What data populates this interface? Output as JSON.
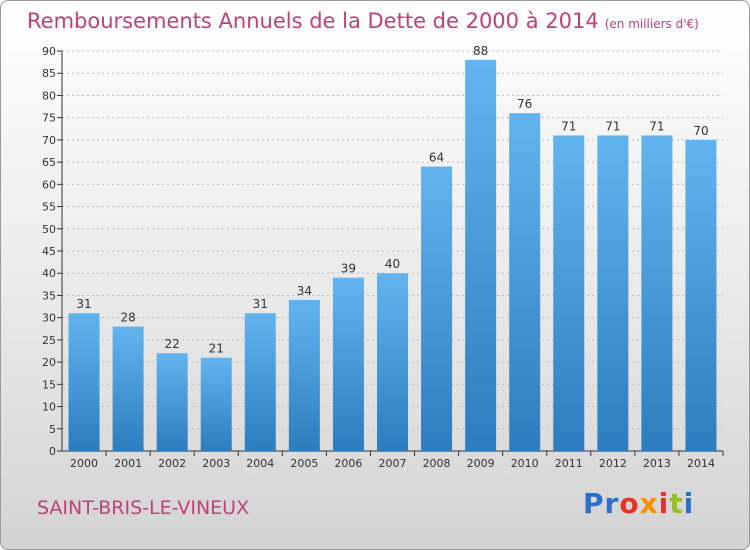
{
  "header": {
    "title": "Remboursements Annuels de la Dette de 2000 à 2014",
    "unit": "(en milliers d'€)"
  },
  "footer": {
    "city": "SAINT-BRIS-LE-VINEUX",
    "logo": [
      "Pr",
      "o",
      "x",
      "i",
      "t",
      "i"
    ]
  },
  "colors": {
    "title": "#c0407a",
    "bar_top": "#63b4ee",
    "bar_bottom": "#2c7dbf",
    "axis": "#333333",
    "grid": "#bbbbbb"
  },
  "chart_data": {
    "type": "bar",
    "title": "Remboursements Annuels de la Dette de 2000 à 2014",
    "subtitle": "(en milliers d'€)",
    "xlabel": "",
    "ylabel": "",
    "categories": [
      "2000",
      "2001",
      "2002",
      "2003",
      "2004",
      "2005",
      "2006",
      "2007",
      "2008",
      "2009",
      "2010",
      "2011",
      "2012",
      "2013",
      "2014"
    ],
    "values": [
      31,
      28,
      22,
      21,
      31,
      34,
      39,
      40,
      64,
      88,
      76,
      71,
      71,
      71,
      70
    ],
    "ylim": [
      0,
      90
    ],
    "yticks": [
      0,
      5,
      10,
      15,
      20,
      25,
      30,
      35,
      40,
      45,
      50,
      55,
      60,
      65,
      70,
      75,
      80,
      85,
      90
    ],
    "grid": true,
    "legend": "none"
  }
}
